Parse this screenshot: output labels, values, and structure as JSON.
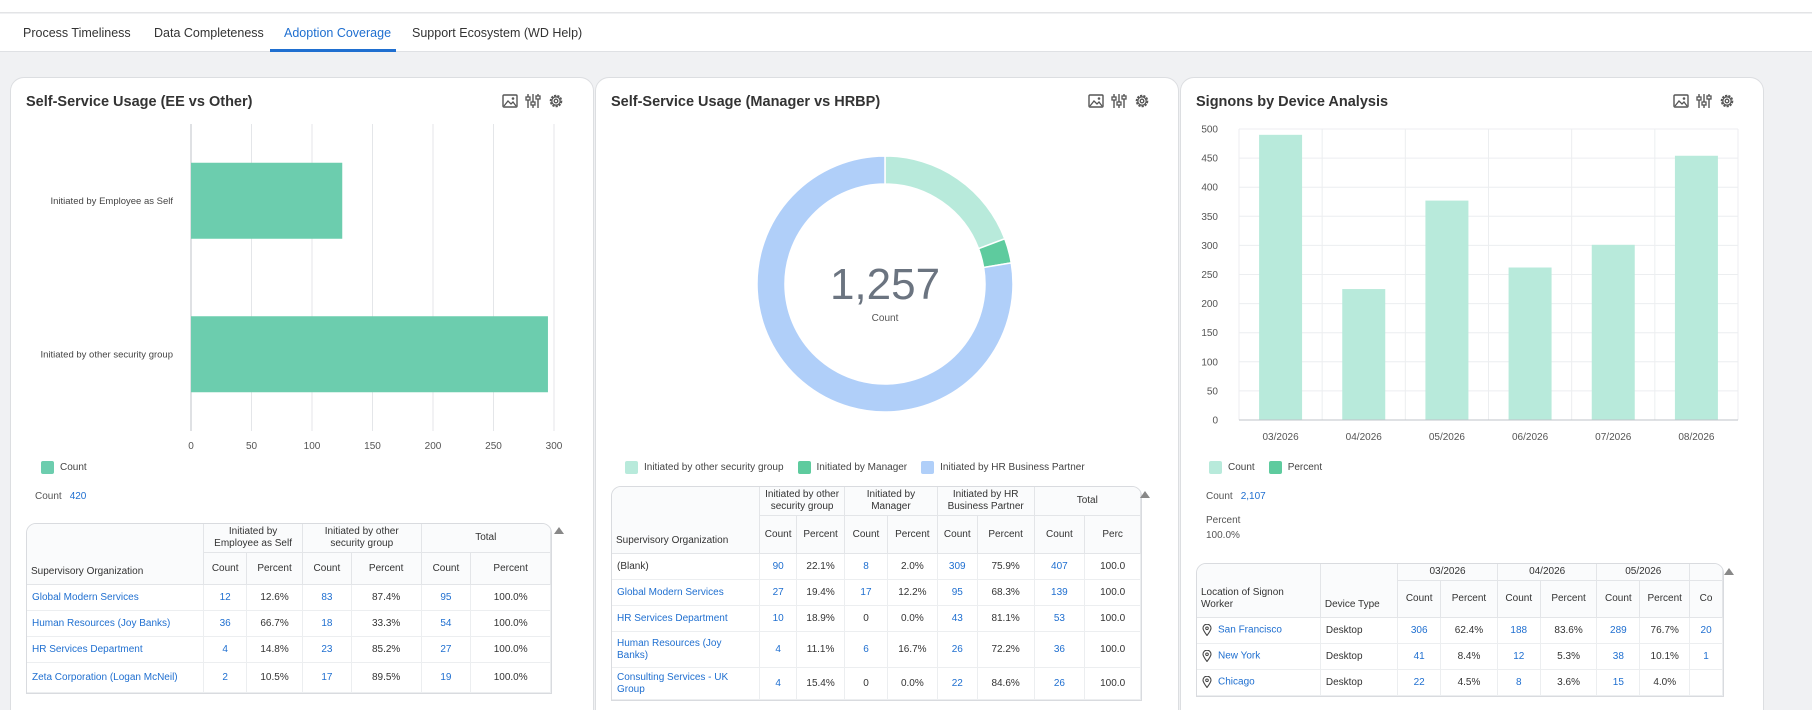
{
  "tabs": [
    {
      "label": "Process Timeliness"
    },
    {
      "label": "Data Completeness"
    },
    {
      "label": "Adoption Coverage",
      "active": true
    },
    {
      "label": "Support Ecosystem (WD Help)"
    }
  ],
  "colors": {
    "accent": "#1f6fd0",
    "green": "#6ccdae",
    "light_green": "#b8eadb",
    "mid_green": "#5ecb9e",
    "light_blue": "#b0cff9"
  },
  "card1": {
    "title": "Self-Service Usage (EE vs Other)",
    "legend": [
      {
        "label": "Count",
        "color": "#6ccdae"
      }
    ],
    "stat_label": "Count",
    "stat_value": "420",
    "table": {
      "header_group": [
        "Initiated by Employee as Self",
        "Initiated by other security group",
        "Total"
      ],
      "org_header": "Supervisory Organization",
      "sub_headers": [
        "Count",
        "Percent",
        "Count",
        "Percent",
        "Count",
        "Percent"
      ],
      "rows": [
        {
          "org": "Global Modern Services",
          "cells": [
            "12",
            "12.6%",
            "83",
            "87.4%",
            "95",
            "100.0%"
          ]
        },
        {
          "org": "Human Resources (Joy Banks)",
          "cells": [
            "36",
            "66.7%",
            "18",
            "33.3%",
            "54",
            "100.0%"
          ]
        },
        {
          "org": "HR Services Department",
          "cells": [
            "4",
            "14.8%",
            "23",
            "85.2%",
            "27",
            "100.0%"
          ]
        },
        {
          "org": "Zeta Corporation (Logan McNeil)",
          "cells": [
            "2",
            "10.5%",
            "17",
            "89.5%",
            "19",
            "100.0%"
          ]
        }
      ]
    }
  },
  "card2": {
    "title": "Self-Service Usage (Manager vs HRBP)",
    "center_value": "1,257",
    "center_label": "Count",
    "legend": [
      {
        "label": "Initiated by other security group",
        "color": "#b8eadb"
      },
      {
        "label": "Initiated by Manager",
        "color": "#5ecb9e"
      },
      {
        "label": "Initiated by HR Business Partner",
        "color": "#b0cff9"
      }
    ],
    "table": {
      "header_group": [
        "Initiated by other security group",
        "Initiated by Manager",
        "Initiated by HR Business Partner",
        "Total"
      ],
      "org_header": "Supervisory Organization",
      "sub_headers": [
        "Count",
        "Percent",
        "Count",
        "Percent",
        "Count",
        "Percent",
        "Count",
        "Perc"
      ],
      "rows": [
        {
          "org": "(Blank)",
          "cells": [
            "90",
            "22.1%",
            "8",
            "2.0%",
            "309",
            "75.9%",
            "407",
            "100.0"
          ]
        },
        {
          "org": "Global Modern Services",
          "cells": [
            "27",
            "19.4%",
            "17",
            "12.2%",
            "95",
            "68.3%",
            "139",
            "100.0"
          ]
        },
        {
          "org": "HR Services Department",
          "cells": [
            "10",
            "18.9%",
            "0",
            "0.0%",
            "43",
            "81.1%",
            "53",
            "100.0"
          ]
        },
        {
          "org": "Human Resources (Joy Banks)",
          "cells": [
            "4",
            "11.1%",
            "6",
            "16.7%",
            "26",
            "72.2%",
            "36",
            "100.0"
          ]
        },
        {
          "org": "Consulting Services - UK Group",
          "cells": [
            "4",
            "15.4%",
            "0",
            "0.0%",
            "22",
            "84.6%",
            "26",
            "100.0"
          ]
        }
      ]
    }
  },
  "card3": {
    "title": "Signons by Device Analysis",
    "legend": [
      {
        "label": "Count",
        "color": "#b8eadb"
      },
      {
        "label": "Percent",
        "color": "#5ecb9e"
      }
    ],
    "stat_count_label": "Count",
    "stat_count_value": "2,107",
    "stat_percent_label": "Percent",
    "stat_percent_value": "100.0%",
    "table": {
      "loc_header": "Location of Signon Worker",
      "device_header": "Device Type",
      "month_headers": [
        "03/2026",
        "04/2026",
        "05/2026"
      ],
      "sub_headers": [
        "Count",
        "Percent",
        "Count",
        "Percent",
        "Count",
        "Percent",
        "Co"
      ],
      "rows": [
        {
          "loc": "San Francisco",
          "device": "Desktop",
          "cells": [
            "306",
            "62.4%",
            "188",
            "83.6%",
            "289",
            "76.7%",
            "20"
          ]
        },
        {
          "loc": "New York",
          "device": "Desktop",
          "cells": [
            "41",
            "8.4%",
            "12",
            "5.3%",
            "38",
            "10.1%",
            "1"
          ]
        },
        {
          "loc": "Chicago",
          "device": "Desktop",
          "cells": [
            "22",
            "4.5%",
            "8",
            "3.6%",
            "15",
            "4.0%",
            ""
          ]
        }
      ]
    }
  },
  "chart_data": [
    {
      "type": "bar",
      "orientation": "horizontal",
      "title": "Self-Service Usage (EE vs Other)",
      "categories": [
        "Initiated by Employee as Self",
        "Initiated by other security group"
      ],
      "series": [
        {
          "name": "Count",
          "values": [
            125,
            295
          ]
        }
      ],
      "xlim": [
        0,
        300
      ],
      "xticks": [
        "0",
        "50",
        "100",
        "150",
        "200",
        "250",
        "300"
      ],
      "grid": true,
      "legend": "bottom-left"
    },
    {
      "type": "pie",
      "donut": true,
      "title": "Self-Service Usage (Manager vs HRBP)",
      "labels": [
        "Initiated by other security group",
        "Initiated by Manager",
        "Initiated by HR Business Partner"
      ],
      "values": [
        242,
        39,
        976
      ],
      "total": "1,257",
      "legend": "bottom"
    },
    {
      "type": "bar",
      "title": "Signons by Device Analysis",
      "categories": [
        "03/2026",
        "04/2026",
        "05/2026",
        "06/2026",
        "07/2026",
        "08/2026"
      ],
      "series": [
        {
          "name": "Count",
          "values": [
            490,
            225,
            377,
            262,
            301,
            454
          ]
        }
      ],
      "ylim": [
        0,
        500
      ],
      "yticks": [
        "0",
        "50",
        "100",
        "150",
        "200",
        "250",
        "300",
        "350",
        "400",
        "450",
        "500"
      ],
      "grid": true,
      "legend": "bottom-left"
    }
  ]
}
